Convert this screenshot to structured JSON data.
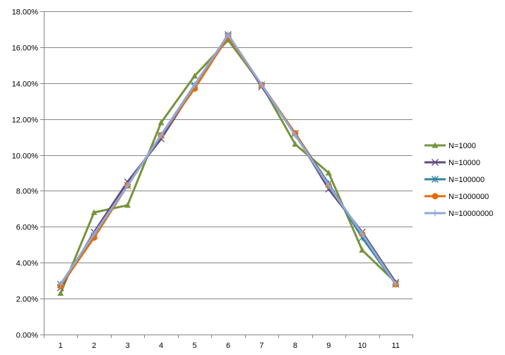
{
  "chart_data": {
    "type": "line",
    "title": "",
    "xlabel": "",
    "ylabel": "",
    "categories": [
      "1",
      "2",
      "3",
      "4",
      "5",
      "6",
      "7",
      "8",
      "9",
      "10",
      "11"
    ],
    "ylim": [
      0,
      0.18
    ],
    "yticks": [
      {
        "value": 0.0,
        "label": "0.00%"
      },
      {
        "value": 0.02,
        "label": "2.00%"
      },
      {
        "value": 0.04,
        "label": "4.00%"
      },
      {
        "value": 0.06,
        "label": "6.00%"
      },
      {
        "value": 0.08,
        "label": "8.00%"
      },
      {
        "value": 0.1,
        "label": "10.00%"
      },
      {
        "value": 0.12,
        "label": "12.00%"
      },
      {
        "value": 0.14,
        "label": "14.00%"
      },
      {
        "value": 0.16,
        "label": "16.00%"
      },
      {
        "value": 0.18,
        "label": "18.00%"
      }
    ],
    "grid": true,
    "legend_position": "right",
    "series": [
      {
        "name": "N=1000",
        "color": "#77933c",
        "marker": "triangle",
        "values": [
          0.023,
          0.068,
          0.072,
          0.118,
          0.144,
          0.164,
          0.139,
          0.106,
          0.09,
          0.047,
          0.029
        ]
      },
      {
        "name": "N=10000",
        "color": "#604a7b",
        "marker": "x",
        "values": [
          0.026,
          0.057,
          0.085,
          0.109,
          0.138,
          0.167,
          0.138,
          0.112,
          0.081,
          0.057,
          0.029
        ]
      },
      {
        "name": "N=100000",
        "color": "#31859c",
        "marker": "asterisk",
        "values": [
          0.028,
          0.055,
          0.083,
          0.111,
          0.139,
          0.166,
          0.139,
          0.112,
          0.084,
          0.054,
          0.028
        ]
      },
      {
        "name": "N=1000000",
        "color": "#e46c0a",
        "marker": "circle",
        "values": [
          0.027,
          0.054,
          0.083,
          0.111,
          0.137,
          0.166,
          0.139,
          0.112,
          0.083,
          0.056,
          0.028
        ]
      },
      {
        "name": "N=10000000",
        "color": "#8ea9db",
        "marker": "plus",
        "values": [
          0.028,
          0.056,
          0.083,
          0.111,
          0.139,
          0.167,
          0.139,
          0.111,
          0.083,
          0.056,
          0.028
        ]
      }
    ]
  }
}
